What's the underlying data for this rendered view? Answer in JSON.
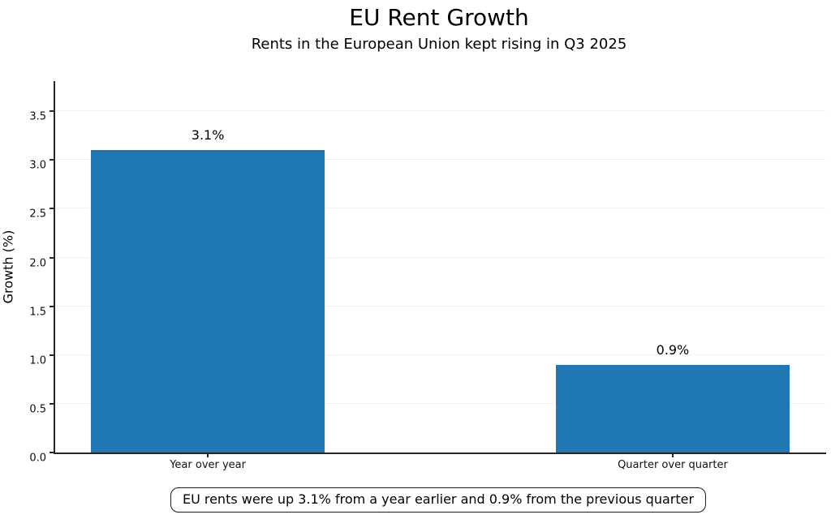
{
  "chart_data": {
    "type": "bar",
    "title": "EU Rent Growth",
    "subtitle": "Rents in the European Union kept rising in Q3 2025",
    "xlabel": "",
    "ylabel": "Growth (%)",
    "categories": [
      "Year over year",
      "Quarter over quarter"
    ],
    "values": [
      3.1,
      0.9
    ],
    "value_labels": [
      "3.1%",
      "0.9%"
    ],
    "yticks": [
      0.0,
      0.5,
      1.0,
      1.5,
      2.0,
      2.5,
      3.0,
      3.5
    ],
    "ylim": [
      0,
      3.81
    ],
    "grid": "horizontal-faint",
    "legend_position": "none",
    "bar_color": "#1f77b4",
    "grid_color": "#f0f0f0",
    "axis_color": "#262626",
    "bar_centers_pct": [
      19.8,
      80.1
    ],
    "bar_width_pct": 30.3,
    "annotation": "EU rents were up 3.1% from a year earlier and 0.9% from the previous quarter"
  }
}
